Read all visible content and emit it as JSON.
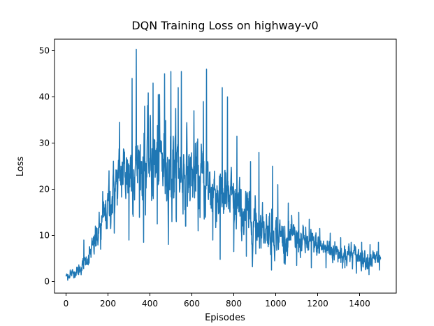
{
  "chart_data": {
    "type": "line",
    "title": "DQN Training Loss on highway-v0",
    "xlabel": "Episodes",
    "ylabel": "Loss",
    "xlim": [
      -55,
      1575
    ],
    "ylim": [
      -2.5,
      52.5
    ],
    "xticks": [
      0,
      200,
      400,
      600,
      800,
      1000,
      1200,
      1400
    ],
    "yticks": [
      0,
      10,
      20,
      30,
      40,
      50
    ],
    "grid": false,
    "legend": "none",
    "line_color": "#1f77b4",
    "series": [
      {
        "points": [
          [
            0,
            1.2
          ],
          [
            20,
            1.5
          ],
          [
            40,
            2.0
          ],
          [
            60,
            2.5
          ],
          [
            80,
            3.5
          ],
          [
            100,
            5.0
          ],
          [
            120,
            6.5
          ],
          [
            140,
            8.5
          ],
          [
            160,
            11.0
          ],
          [
            180,
            13.5
          ],
          [
            200,
            16.0
          ],
          [
            220,
            18.5
          ],
          [
            240,
            21.0
          ],
          [
            260,
            23.0
          ],
          [
            280,
            24.0
          ],
          [
            300,
            24.5
          ],
          [
            320,
            25.0
          ],
          [
            340,
            25.5
          ],
          [
            360,
            25.0
          ],
          [
            380,
            25.5
          ],
          [
            400,
            26.0
          ],
          [
            420,
            25.5
          ],
          [
            440,
            26.0
          ],
          [
            460,
            26.0
          ],
          [
            480,
            25.5
          ],
          [
            500,
            25.0
          ],
          [
            520,
            25.0
          ],
          [
            540,
            24.5
          ],
          [
            560,
            24.0
          ],
          [
            580,
            23.5
          ],
          [
            600,
            23.0
          ],
          [
            620,
            22.5
          ],
          [
            640,
            22.0
          ],
          [
            660,
            21.5
          ],
          [
            680,
            21.0
          ],
          [
            700,
            20.0
          ],
          [
            720,
            19.5
          ],
          [
            740,
            19.0
          ],
          [
            760,
            18.5
          ],
          [
            780,
            17.5
          ],
          [
            800,
            16.5
          ],
          [
            820,
            15.5
          ],
          [
            840,
            15.0
          ],
          [
            860,
            14.5
          ],
          [
            880,
            13.5
          ],
          [
            900,
            13.0
          ],
          [
            920,
            12.5
          ],
          [
            940,
            12.0
          ],
          [
            960,
            11.5
          ],
          [
            980,
            11.0
          ],
          [
            1000,
            10.5
          ],
          [
            1020,
            10.0
          ],
          [
            1040,
            9.8
          ],
          [
            1060,
            9.5
          ],
          [
            1080,
            9.3
          ],
          [
            1100,
            9.0
          ],
          [
            1120,
            8.8
          ],
          [
            1140,
            8.5
          ],
          [
            1160,
            8.3
          ],
          [
            1180,
            8.0
          ],
          [
            1200,
            7.8
          ],
          [
            1220,
            7.5
          ],
          [
            1240,
            7.2
          ],
          [
            1260,
            7.0
          ],
          [
            1280,
            6.7
          ],
          [
            1300,
            6.5
          ],
          [
            1320,
            6.2
          ],
          [
            1340,
            6.0
          ],
          [
            1360,
            5.8
          ],
          [
            1380,
            5.6
          ],
          [
            1400,
            5.4
          ],
          [
            1420,
            5.2
          ],
          [
            1440,
            5.0
          ],
          [
            1460,
            4.8
          ],
          [
            1480,
            4.7
          ],
          [
            1500,
            4.5
          ]
        ],
        "spread": [
          [
            0,
            0.8
          ],
          [
            100,
            2.0
          ],
          [
            200,
            6.0
          ],
          [
            300,
            10.0
          ],
          [
            400,
            12.0
          ],
          [
            500,
            11.5
          ],
          [
            600,
            10.0
          ],
          [
            700,
            9.0
          ],
          [
            800,
            8.0
          ],
          [
            900,
            6.5
          ],
          [
            1000,
            5.0
          ],
          [
            1100,
            4.0
          ],
          [
            1200,
            3.5
          ],
          [
            1300,
            3.0
          ],
          [
            1400,
            2.8
          ],
          [
            1500,
            2.5
          ]
        ],
        "peaks": [
          [
            20,
            2.5
          ],
          [
            85,
            9.0
          ],
          [
            140,
            12.0
          ],
          [
            175,
            19.5
          ],
          [
            205,
            24.0
          ],
          [
            255,
            34.5
          ],
          [
            300,
            40.0
          ],
          [
            315,
            44.0
          ],
          [
            335,
            50.3
          ],
          [
            375,
            38.0
          ],
          [
            415,
            43.0
          ],
          [
            440,
            40.5
          ],
          [
            470,
            45.0
          ],
          [
            500,
            45.5
          ],
          [
            535,
            42.0
          ],
          [
            550,
            45.5
          ],
          [
            610,
            37.0
          ],
          [
            655,
            39.0
          ],
          [
            670,
            46.0
          ],
          [
            700,
            35.0
          ],
          [
            745,
            42.0
          ],
          [
            770,
            40.0
          ],
          [
            815,
            31.5
          ],
          [
            880,
            26.0
          ],
          [
            920,
            28.0
          ],
          [
            985,
            25.0
          ],
          [
            1010,
            21.0
          ],
          [
            1060,
            17.0
          ],
          [
            1110,
            15.0
          ],
          [
            1160,
            13.5
          ],
          [
            1210,
            11.5
          ],
          [
            1260,
            10.5
          ],
          [
            1310,
            9.5
          ],
          [
            1360,
            8.5
          ],
          [
            1410,
            8.5
          ],
          [
            1450,
            8.0
          ],
          [
            1490,
            8.5
          ]
        ],
        "troughs": [
          [
            8,
            0.3
          ],
          [
            60,
            1.5
          ],
          [
            110,
            4.0
          ],
          [
            165,
            7.0
          ],
          [
            230,
            10.5
          ],
          [
            300,
            9.0
          ],
          [
            370,
            8.5
          ],
          [
            435,
            12.5
          ],
          [
            505,
            13.0
          ],
          [
            570,
            12.0
          ],
          [
            630,
            11.0
          ],
          [
            700,
            9.0
          ],
          [
            735,
            4.8
          ],
          [
            800,
            6.5
          ],
          [
            860,
            5.5
          ],
          [
            905,
            6.0
          ],
          [
            980,
            2.5
          ],
          [
            1040,
            4.0
          ],
          [
            1100,
            3.5
          ],
          [
            1170,
            3.0
          ],
          [
            1240,
            3.0
          ],
          [
            1330,
            3.0
          ],
          [
            1385,
            1.8
          ],
          [
            1445,
            1.5
          ],
          [
            1495,
            2.5
          ]
        ]
      }
    ]
  }
}
